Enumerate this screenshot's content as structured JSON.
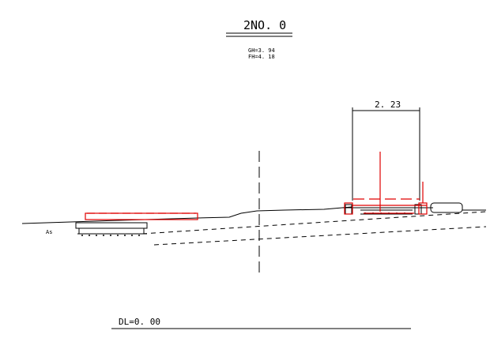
{
  "section": {
    "title": "2NO. 0",
    "gh": "GH=3. 94",
    "fh": "FH=4. 18",
    "width_dimension": "2. 23",
    "left_label": "As",
    "datum": "DL=0. 00"
  },
  "colors": {
    "line": "#000000",
    "proposed": "#e00000",
    "background": "#ffffff"
  }
}
